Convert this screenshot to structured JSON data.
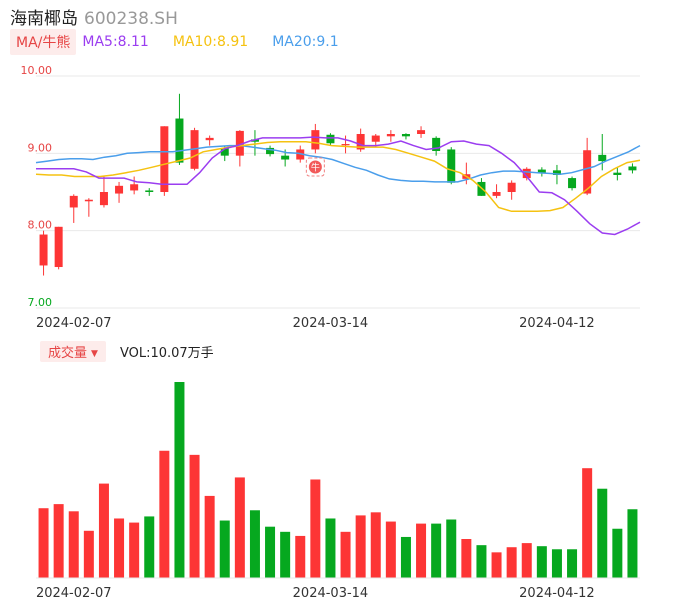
{
  "header": {
    "stock_name": "海南椰岛",
    "stock_code": "600238.SH"
  },
  "legend": {
    "tag_label": "MA/牛熊",
    "ma5_label": "MA5:8.11",
    "ma10_label": "MA10:8.91",
    "ma20_label": "MA20:9.1"
  },
  "volume_legend": {
    "tag_label": "成交量",
    "vol_label": "VOL:10.07万手"
  },
  "marker_label": "牛",
  "colors": {
    "up": "#fd3535",
    "down": "#06a81f",
    "ma5": "#9b3df0",
    "ma10": "#f5c211",
    "ma20": "#4a9eeb",
    "grid": "#e9e9e9",
    "price_axis": "#e64545"
  },
  "chart_data": {
    "type": "candlestick",
    "y_axis": {
      "min": 7.0,
      "max": 10.0,
      "ticks": [
        "10.00",
        "9.00",
        "8.00",
        "7.00"
      ],
      "grid": true
    },
    "x_tick_labels": [
      {
        "label": "2024-02-07",
        "index": 2
      },
      {
        "label": "2024-03-14",
        "index": 19
      },
      {
        "label": "2024-04-12",
        "index": 34
      }
    ],
    "candles": [
      {
        "open": 7.55,
        "close": 7.95,
        "high": 8.0,
        "low": 7.42
      },
      {
        "open": 7.53,
        "close": 8.05,
        "high": 8.05,
        "low": 7.5
      },
      {
        "open": 8.3,
        "close": 8.45,
        "high": 8.47,
        "low": 8.1
      },
      {
        "open": 8.38,
        "close": 8.4,
        "high": 8.42,
        "low": 8.18
      },
      {
        "open": 8.33,
        "close": 8.5,
        "high": 8.7,
        "low": 8.3
      },
      {
        "open": 8.48,
        "close": 8.58,
        "high": 8.63,
        "low": 8.36
      },
      {
        "open": 8.52,
        "close": 8.6,
        "high": 8.7,
        "low": 8.47
      },
      {
        "open": 8.52,
        "close": 8.5,
        "high": 8.55,
        "low": 8.45
      },
      {
        "open": 8.5,
        "close": 9.35,
        "high": 9.35,
        "low": 8.45
      },
      {
        "open": 9.45,
        "close": 8.88,
        "high": 9.77,
        "low": 8.85
      },
      {
        "open": 8.8,
        "close": 9.3,
        "high": 9.33,
        "low": 8.78
      },
      {
        "open": 9.17,
        "close": 9.2,
        "high": 9.23,
        "low": 9.1
      },
      {
        "open": 9.07,
        "close": 8.97,
        "high": 9.1,
        "low": 8.9
      },
      {
        "open": 8.97,
        "close": 9.29,
        "high": 9.3,
        "low": 8.83
      },
      {
        "open": 9.18,
        "close": 9.15,
        "high": 9.3,
        "low": 8.97
      },
      {
        "open": 9.07,
        "close": 8.99,
        "high": 9.1,
        "low": 8.96
      },
      {
        "open": 8.97,
        "close": 8.92,
        "high": 9.05,
        "low": 8.83
      },
      {
        "open": 8.92,
        "close": 9.05,
        "high": 9.1,
        "low": 8.88
      },
      {
        "open": 9.05,
        "close": 9.3,
        "high": 9.38,
        "low": 9.0
      },
      {
        "open": 9.24,
        "close": 9.13,
        "high": 9.26,
        "low": 9.1
      },
      {
        "open": 9.12,
        "close": 9.12,
        "high": 9.23,
        "low": 9.0
      },
      {
        "open": 9.05,
        "close": 9.25,
        "high": 9.32,
        "low": 9.02
      },
      {
        "open": 9.15,
        "close": 9.23,
        "high": 9.25,
        "low": 9.08
      },
      {
        "open": 9.22,
        "close": 9.25,
        "high": 9.3,
        "low": 9.15
      },
      {
        "open": 9.25,
        "close": 9.22,
        "high": 9.26,
        "low": 9.18
      },
      {
        "open": 9.25,
        "close": 9.3,
        "high": 9.35,
        "low": 9.2
      },
      {
        "open": 9.2,
        "close": 9.03,
        "high": 9.22,
        "low": 8.97
      },
      {
        "open": 9.05,
        "close": 8.62,
        "high": 9.08,
        "low": 8.6
      },
      {
        "open": 8.67,
        "close": 8.73,
        "high": 8.88,
        "low": 8.6
      },
      {
        "open": 8.63,
        "close": 8.45,
        "high": 8.68,
        "low": 8.45
      },
      {
        "open": 8.45,
        "close": 8.5,
        "high": 8.6,
        "low": 8.42
      },
      {
        "open": 8.5,
        "close": 8.62,
        "high": 8.65,
        "low": 8.4
      },
      {
        "open": 8.68,
        "close": 8.8,
        "high": 8.82,
        "low": 8.65
      },
      {
        "open": 8.79,
        "close": 8.74,
        "high": 8.82,
        "low": 8.7
      },
      {
        "open": 8.78,
        "close": 8.72,
        "high": 8.85,
        "low": 8.6
      },
      {
        "open": 8.68,
        "close": 8.55,
        "high": 8.7,
        "low": 8.52
      },
      {
        "open": 8.48,
        "close": 9.04,
        "high": 9.2,
        "low": 8.46
      },
      {
        "open": 8.98,
        "close": 8.9,
        "high": 9.25,
        "low": 8.78
      },
      {
        "open": 8.75,
        "close": 8.72,
        "high": 8.82,
        "low": 8.65
      },
      {
        "open": 8.83,
        "close": 8.78,
        "high": 8.87,
        "low": 8.74
      }
    ],
    "volume": [
      0.68,
      0.72,
      0.65,
      0.46,
      0.92,
      0.58,
      0.54,
      0.6,
      1.24,
      1.91,
      1.2,
      0.8,
      0.56,
      0.98,
      0.66,
      0.5,
      0.45,
      0.41,
      0.96,
      0.58,
      0.45,
      0.61,
      0.64,
      0.55,
      0.4,
      0.53,
      0.53,
      0.57,
      0.38,
      0.32,
      0.25,
      0.3,
      0.34,
      0.31,
      0.28,
      0.28,
      1.07,
      0.87,
      0.48,
      0.67
    ],
    "ma5": [
      8.8,
      8.8,
      8.8,
      8.8,
      8.76,
      8.68,
      8.68,
      8.68,
      8.63,
      8.62,
      8.6,
      8.6,
      8.6,
      8.75,
      8.94,
      9.06,
      9.1,
      9.16,
      9.2,
      9.2,
      9.2,
      9.2,
      9.21,
      9.2,
      9.2,
      9.16,
      9.1,
      9.1,
      9.12,
      9.16,
      9.1,
      9.05,
      9.07,
      9.15,
      9.16,
      9.12,
      9.1,
      9.0,
      8.88,
      8.7,
      8.5,
      8.49,
      8.4,
      8.25,
      8.09,
      7.97,
      7.95,
      8.02,
      8.11
    ],
    "ma10": [
      8.73,
      8.72,
      8.72,
      8.7,
      8.7,
      8.7,
      8.72,
      8.75,
      8.78,
      8.82,
      8.86,
      8.9,
      8.94,
      9.02,
      9.05,
      9.08,
      9.1,
      9.12,
      9.14,
      9.15,
      9.15,
      9.15,
      9.13,
      9.1,
      9.09,
      9.08,
      9.08,
      9.08,
      9.05,
      9.0,
      8.95,
      8.9,
      8.8,
      8.75,
      8.65,
      8.5,
      8.3,
      8.25,
      8.25,
      8.25,
      8.26,
      8.3,
      8.42,
      8.55,
      8.7,
      8.8,
      8.88,
      8.91
    ],
    "ma20": [
      8.88,
      8.9,
      8.92,
      8.93,
      8.93,
      8.92,
      8.95,
      8.97,
      9.0,
      9.01,
      9.02,
      9.02,
      9.02,
      9.04,
      9.06,
      9.08,
      9.09,
      9.1,
      9.1,
      9.08,
      9.06,
      9.04,
      9.01,
      9.0,
      8.97,
      8.95,
      8.92,
      8.87,
      8.82,
      8.78,
      8.72,
      8.67,
      8.65,
      8.64,
      8.64,
      8.63,
      8.63,
      8.63,
      8.67,
      8.72,
      8.75,
      8.77,
      8.77,
      8.76,
      8.75,
      8.74,
      8.73,
      8.75,
      8.79,
      8.83,
      8.9,
      8.96,
      9.02,
      9.1
    ],
    "signal_marker_index": 18
  }
}
